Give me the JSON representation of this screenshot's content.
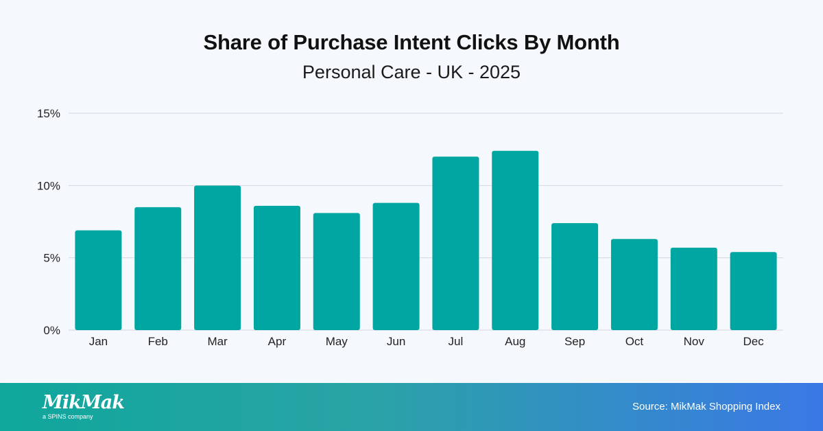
{
  "header": {
    "title": "Share of Purchase Intent Clicks By Month",
    "subtitle": "Personal Care - UK - 2025"
  },
  "footer": {
    "logo_text": "MikMak",
    "logo_subtext": "a SPINS company",
    "source": "Source: MikMak Shopping Index"
  },
  "colors": {
    "bar": "#00a6a1",
    "grid": "#d3d9e0",
    "tick_text": "#222222"
  },
  "chart_data": {
    "type": "bar",
    "title": "Share of Purchase Intent Clicks By Month",
    "subtitle": "Personal Care - UK - 2025",
    "categories": [
      "Jan",
      "Feb",
      "Mar",
      "Apr",
      "May",
      "Jun",
      "Jul",
      "Aug",
      "Sep",
      "Oct",
      "Nov",
      "Dec"
    ],
    "values": [
      6.9,
      8.5,
      10.0,
      8.6,
      8.1,
      8.8,
      12.0,
      12.4,
      7.4,
      6.3,
      5.7,
      5.4
    ],
    "unit": "%",
    "ylim": [
      0,
      15
    ],
    "yticks": [
      0,
      5,
      10,
      15
    ],
    "ytick_labels": [
      "0%",
      "5%",
      "10%",
      "15%"
    ],
    "xlabel": "",
    "ylabel": "",
    "grid": true,
    "legend": "none"
  }
}
